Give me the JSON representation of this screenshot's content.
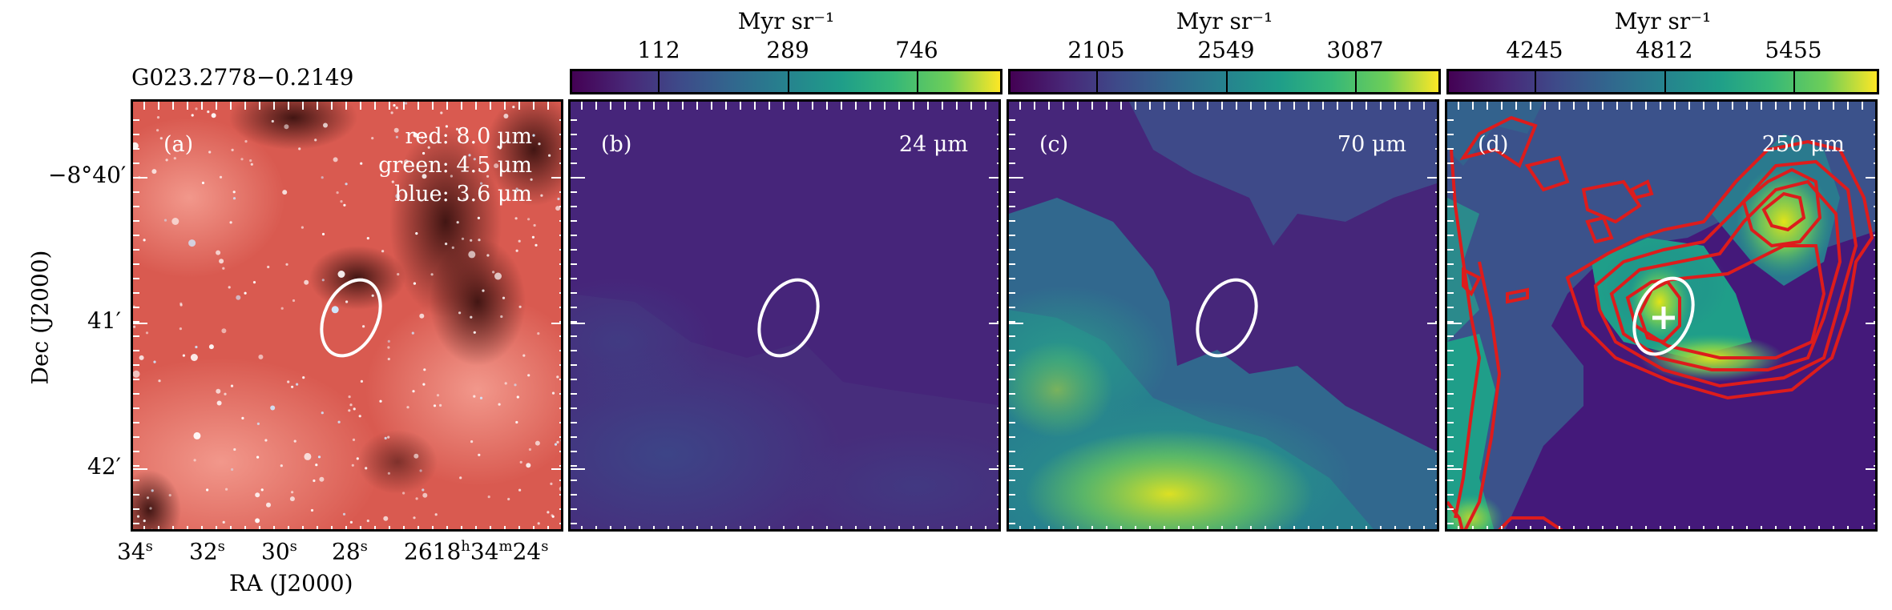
{
  "source_name": "G023.2778−0.2149",
  "axes": {
    "xlabel": "RA (J2000)",
    "ylabel": "Dec (J2000)",
    "x_ticks": [
      {
        "main": "34",
        "sup": "s"
      },
      {
        "main": "32",
        "sup": "s"
      },
      {
        "main": "30",
        "sup": "s"
      },
      {
        "main": "28",
        "sup": "s"
      },
      {
        "main": "26",
        "sup": ""
      },
      {
        "main": "18",
        "sup": "h"
      },
      {
        "main": "34",
        "sup": "m"
      },
      {
        "main": "24",
        "sup": "s"
      }
    ],
    "y_ticks": [
      "−8°40′",
      "41′",
      "42′"
    ]
  },
  "panels": [
    {
      "label": "(a)",
      "rgb": {
        "red": "red: 8.0 μm",
        "green": "green: 4.5 μm",
        "blue": "blue: 3.6 μm"
      }
    },
    {
      "label": "(b)",
      "wavelength": "24 μm",
      "colorbar": {
        "unit": "Myr sr⁻¹",
        "ticks": [
          "112",
          "289",
          "746"
        ]
      }
    },
    {
      "label": "(c)",
      "wavelength": "70 μm",
      "colorbar": {
        "unit": "Myr sr⁻¹",
        "ticks": [
          "2105",
          "2549",
          "3087"
        ]
      }
    },
    {
      "label": "(d)",
      "wavelength": "250 μm",
      "colorbar": {
        "unit": "Myr sr⁻¹",
        "ticks": [
          "4245",
          "4812",
          "5455"
        ]
      }
    }
  ],
  "colors": {
    "ellipse": "#ffffff",
    "contours": "#dd1c1c",
    "marker": "#ffffff",
    "colormap": "viridis"
  }
}
